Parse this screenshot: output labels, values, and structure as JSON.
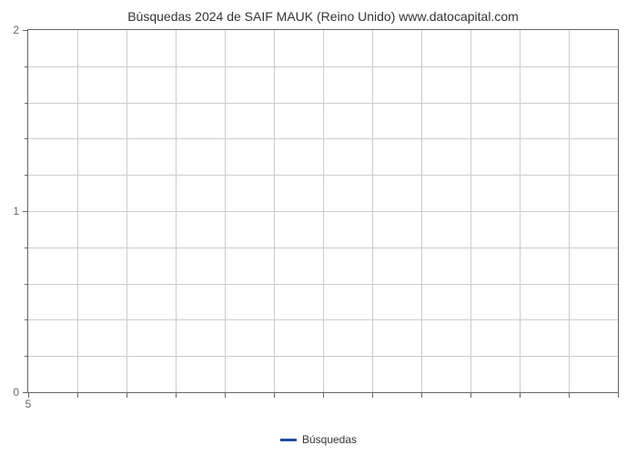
{
  "chart": {
    "type": "line",
    "title": "Búsquedas 2024 de SAIF MAUK (Reino Unido) www.datocapital.com",
    "title_fontsize": 14,
    "title_color": "#333333",
    "background_color": "#ffffff",
    "plot_border_color": "#666666",
    "grid_color": "#cccccc",
    "axis_label_color": "#666666",
    "axis_label_fontsize": 12,
    "ylim": [
      0,
      2
    ],
    "y_major_ticks": [
      0,
      1,
      2
    ],
    "y_minor_count_between": 4,
    "xlim": [
      5,
      17
    ],
    "x_major_ticks": [
      5
    ],
    "x_grid_lines": 12,
    "series": [
      {
        "name": "Búsquedas",
        "color": "#1f4e9c",
        "line_width": 3,
        "data": []
      }
    ],
    "legend": {
      "label": "Búsquedas",
      "swatch_color": "#1f4e9c",
      "position": "bottom-center"
    }
  }
}
